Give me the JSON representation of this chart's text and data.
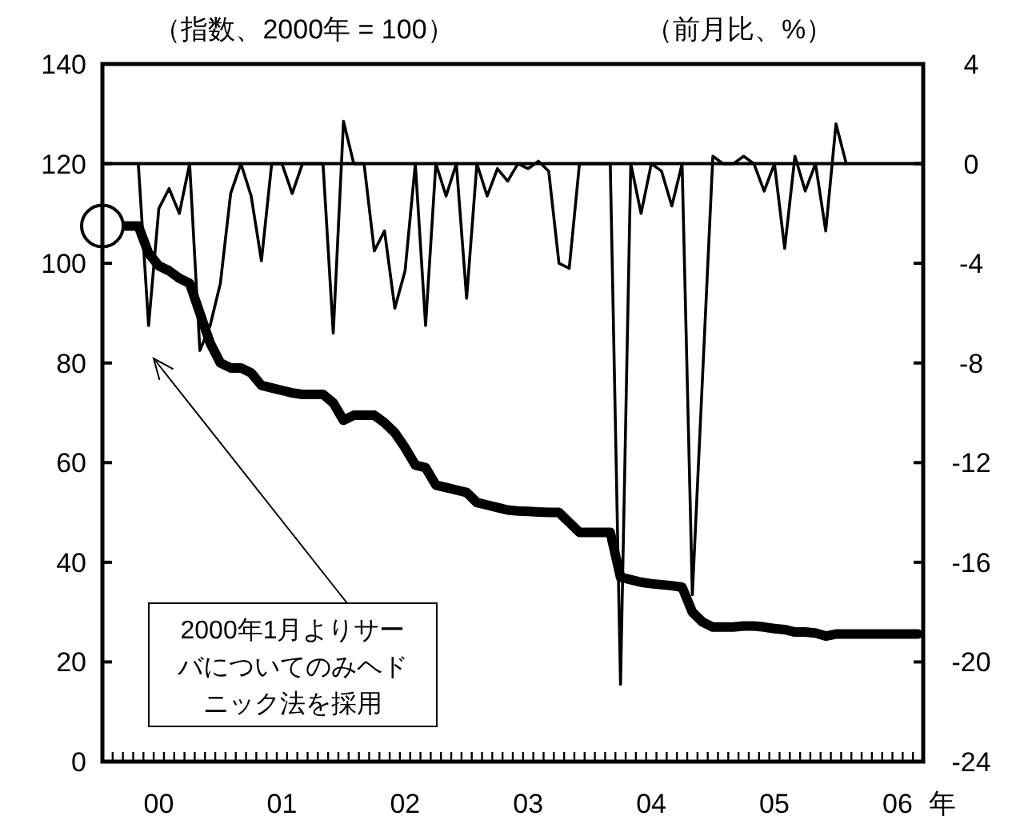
{
  "chart_data": {
    "type": "line",
    "ylabel": "（指数、2000年 = 100）",
    "y2label": "（前月比、%）",
    "xlabel": "年",
    "annotations": [
      "2000年1月よりサーバについてのみヘドニック法を採用"
    ],
    "ylim": [
      0,
      140
    ],
    "y2lim": [
      -24,
      4
    ],
    "yticks": [
      0,
      20,
      40,
      60,
      80,
      100,
      120,
      140
    ],
    "y2ticks": [
      -24,
      -20,
      -16,
      -12,
      -8,
      -4,
      0,
      4
    ],
    "categories": [
      null,
      null,
      null,
      null,
      null,
      "00",
      null,
      null,
      null,
      null,
      null,
      null,
      null,
      null,
      null,
      null,
      null,
      "01",
      null,
      null,
      null,
      null,
      null,
      null,
      null,
      null,
      null,
      null,
      null,
      "02",
      null,
      null,
      null,
      null,
      null,
      null,
      null,
      null,
      null,
      null,
      null,
      "03",
      null,
      null,
      null,
      null,
      null,
      null,
      null,
      null,
      null,
      null,
      null,
      "04",
      null,
      null,
      null,
      null,
      null,
      null,
      null,
      null,
      null,
      null,
      null,
      "05",
      null,
      null,
      null,
      null,
      null,
      null,
      null,
      null,
      null,
      null,
      null,
      "06",
      null,
      null
    ],
    "ref_lines": [
      {
        "axis": "y2",
        "value": 0,
        "color": "#000000"
      }
    ],
    "grid": false,
    "series": [
      {
        "color": "#000000",
        "values": [
          107.5,
          107.5,
          107.5,
          107.5,
          102,
          99.5,
          98.5,
          97,
          96,
          90,
          84,
          80,
          79,
          79,
          78,
          75.5,
          75,
          74.5,
          74,
          73.7,
          73.7,
          73.7,
          72,
          68.5,
          69.5,
          69.5,
          69.5,
          68,
          66,
          63,
          59.5,
          59,
          55.5,
          55,
          54.5,
          54,
          52,
          51.5,
          51,
          50.5,
          50.3,
          50.2,
          50.1,
          50,
          50,
          48,
          46,
          46,
          46,
          46,
          37,
          36.5,
          36,
          35.7,
          35.5,
          35.3,
          35,
          30,
          28,
          27,
          27,
          27,
          27.2,
          27.2,
          27,
          26.7,
          26.5,
          26,
          26,
          25.8,
          25.2,
          25.6,
          25.6,
          25.6,
          25.6,
          25.6,
          25.6,
          25.6,
          25.6,
          25.6
        ]
      },
      {
        "color": "#000000",
        "axis": "y2",
        "values": [
          null,
          null,
          null,
          0,
          -6.5,
          -1.8,
          -1,
          -2,
          0,
          -7.5,
          -6.5,
          -4.8,
          -1.2,
          0,
          -1.3,
          -3.9,
          0,
          0,
          -1.2,
          0,
          0,
          0,
          -6.8,
          1.7,
          0,
          0,
          -3.5,
          -2.7,
          -5.8,
          -4.3,
          0,
          -6.5,
          0,
          -1.3,
          0,
          -5.4,
          0,
          -1.3,
          -0.2,
          -0.7,
          0,
          -0.2,
          0.1,
          -0.3,
          -4,
          -4.2,
          0,
          0,
          0,
          0,
          -20.9,
          0,
          -2,
          0,
          -0.3,
          -1.7,
          0,
          -17.3,
          -8.5,
          0.3,
          0,
          0,
          0.3,
          0,
          -1.1,
          0,
          -3.4,
          0.3,
          -1.1,
          0,
          -2.7,
          1.6,
          0,
          null,
          null,
          null,
          null,
          null,
          null,
          null
        ]
      }
    ]
  }
}
